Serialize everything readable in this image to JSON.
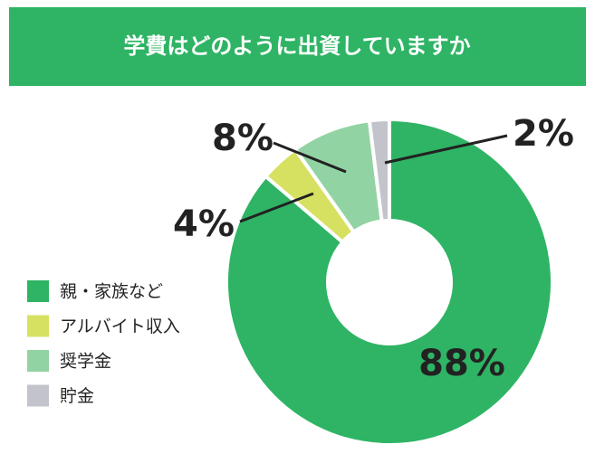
{
  "chart_data": {
    "type": "donut",
    "title": "学費はどのように出資していますか",
    "categories": [
      "親・家族など",
      "アルバイト収入",
      "奨学金",
      "貯金"
    ],
    "values": [
      88,
      4,
      8,
      2
    ],
    "value_labels": [
      "88%",
      "4%",
      "8%",
      "2%"
    ],
    "colors": [
      "#2eb464",
      "#d6e162",
      "#92d3a3",
      "#c3c4cb"
    ]
  }
}
